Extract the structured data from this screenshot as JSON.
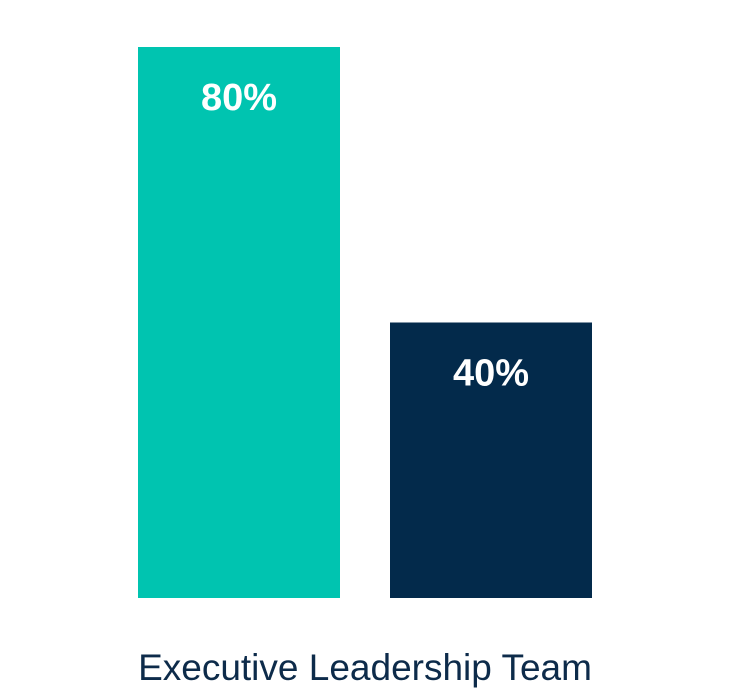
{
  "chart_data": {
    "type": "bar",
    "categories": [
      "Executive Leadership Team"
    ],
    "series": [
      {
        "color": "#00c4b0",
        "values": [
          80
        ],
        "value_labels": [
          "80%"
        ]
      },
      {
        "color": "#032a4b",
        "values": [
          40
        ],
        "value_labels": [
          "40%"
        ]
      }
    ],
    "ylim": [
      0,
      80
    ]
  }
}
